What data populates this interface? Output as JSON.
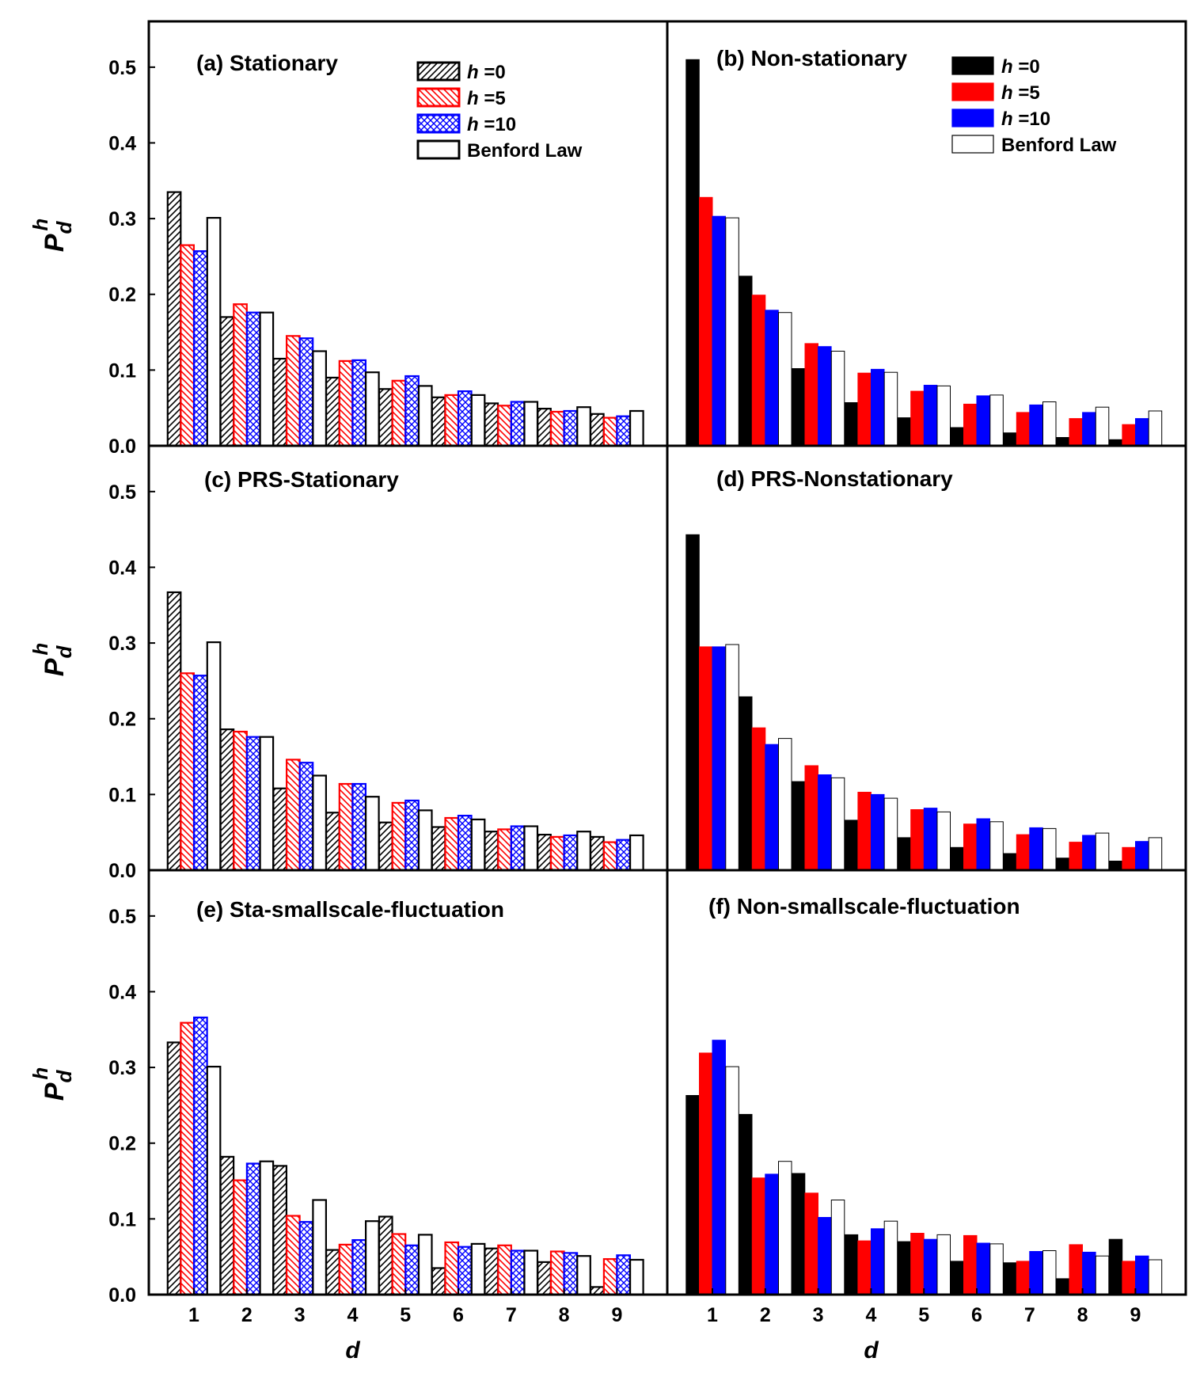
{
  "chart_data": {
    "type": "bar",
    "xlabel": "d",
    "ylabel": {
      "base": "P",
      "subscript": "d",
      "superscript": "h"
    },
    "categories": [
      "1",
      "2",
      "3",
      "4",
      "5",
      "6",
      "7",
      "8",
      "9"
    ],
    "ylim": [
      0,
      0.55
    ],
    "yticks": [
      "0.0",
      "0.1",
      "0.2",
      "0.3",
      "0.4",
      "0.5"
    ],
    "legend": {
      "hatched": [
        {
          "prefix": "h",
          "suffix": " =0",
          "color": "#000000",
          "pattern": "diagonal"
        },
        {
          "prefix": "h",
          "suffix": " =5",
          "color": "#ff0000",
          "pattern": "reverse-diagonal"
        },
        {
          "prefix": "h",
          "suffix": " =10",
          "color": "#0000ff",
          "pattern": "crosshatch"
        },
        {
          "prefix": "",
          "suffix": "Benford Law",
          "color": "#000000",
          "pattern": "none"
        }
      ],
      "solid": [
        {
          "prefix": "h",
          "suffix": " =0",
          "color": "#000000"
        },
        {
          "prefix": "h",
          "suffix": " =5",
          "color": "#ff0000"
        },
        {
          "prefix": "h",
          "suffix": " =10",
          "color": "#0000ff"
        },
        {
          "prefix": "",
          "suffix": "Benford Law",
          "color": "#ffffff"
        }
      ]
    },
    "panels": [
      {
        "title": "(a) Stationary",
        "style": "hatched",
        "legend_position": "top-right",
        "series": [
          {
            "name": "h =0",
            "values": [
              0.335,
              0.17,
              0.115,
              0.09,
              0.075,
              0.064,
              0.056,
              0.049,
              0.042
            ]
          },
          {
            "name": "h =5",
            "values": [
              0.265,
              0.187,
              0.145,
              0.112,
              0.086,
              0.067,
              0.053,
              0.045,
              0.037
            ]
          },
          {
            "name": "h =10",
            "values": [
              0.257,
              0.176,
              0.142,
              0.113,
              0.092,
              0.072,
              0.058,
              0.046,
              0.039
            ]
          },
          {
            "name": "Benford Law",
            "values": [
              0.301,
              0.176,
              0.125,
              0.097,
              0.079,
              0.067,
              0.058,
              0.051,
              0.046
            ]
          }
        ]
      },
      {
        "title": "(b) Non-stationary",
        "style": "solid",
        "legend_position": "top-right",
        "series": [
          {
            "name": "h =0",
            "values": [
              0.51,
              0.224,
              0.102,
              0.057,
              0.037,
              0.024,
              0.017,
              0.011,
              0.008
            ]
          },
          {
            "name": "h =5",
            "values": [
              0.328,
              0.199,
              0.135,
              0.096,
              0.072,
              0.055,
              0.044,
              0.036,
              0.028
            ]
          },
          {
            "name": "h =10",
            "values": [
              0.303,
              0.179,
              0.131,
              0.101,
              0.08,
              0.066,
              0.054,
              0.044,
              0.036
            ]
          },
          {
            "name": "Benford Law",
            "values": [
              0.301,
              0.176,
              0.125,
              0.097,
              0.079,
              0.067,
              0.058,
              0.051,
              0.046
            ]
          }
        ]
      },
      {
        "title": "(c) PRS-Stationary",
        "style": "hatched",
        "series": [
          {
            "name": "h =0",
            "values": [
              0.367,
              0.186,
              0.108,
              0.076,
              0.063,
              0.057,
              0.051,
              0.047,
              0.044
            ]
          },
          {
            "name": "h =5",
            "values": [
              0.26,
              0.183,
              0.146,
              0.114,
              0.089,
              0.069,
              0.054,
              0.044,
              0.037
            ]
          },
          {
            "name": "h =10",
            "values": [
              0.257,
              0.176,
              0.142,
              0.114,
              0.092,
              0.072,
              0.058,
              0.046,
              0.04
            ]
          },
          {
            "name": "Benford Law",
            "values": [
              0.301,
              0.176,
              0.125,
              0.097,
              0.079,
              0.067,
              0.058,
              0.051,
              0.046
            ]
          }
        ]
      },
      {
        "title": "(d) PRS-Nonstationary",
        "style": "solid",
        "series": [
          {
            "name": "h =0",
            "values": [
              0.443,
              0.229,
              0.117,
              0.066,
              0.043,
              0.03,
              0.022,
              0.016,
              0.012
            ]
          },
          {
            "name": "h =5",
            "values": [
              0.295,
              0.188,
              0.138,
              0.103,
              0.08,
              0.061,
              0.047,
              0.037,
              0.03
            ]
          },
          {
            "name": "h =10",
            "values": [
              0.295,
              0.166,
              0.126,
              0.1,
              0.082,
              0.068,
              0.056,
              0.046,
              0.038
            ]
          },
          {
            "name": "Benford Law",
            "values": [
              0.298,
              0.174,
              0.122,
              0.095,
              0.077,
              0.064,
              0.055,
              0.049,
              0.043
            ]
          }
        ]
      },
      {
        "title": "(e) Sta-smallscale-fluctuation",
        "style": "hatched",
        "series": [
          {
            "name": "h =0",
            "values": [
              0.333,
              0.182,
              0.17,
              0.059,
              0.103,
              0.035,
              0.061,
              0.043,
              0.01
            ]
          },
          {
            "name": "h =5",
            "values": [
              0.359,
              0.151,
              0.104,
              0.066,
              0.08,
              0.069,
              0.065,
              0.057,
              0.047
            ]
          },
          {
            "name": "h =10",
            "values": [
              0.366,
              0.173,
              0.096,
              0.072,
              0.065,
              0.063,
              0.058,
              0.055,
              0.052
            ]
          },
          {
            "name": "Benford Law",
            "values": [
              0.301,
              0.176,
              0.125,
              0.097,
              0.079,
              0.067,
              0.058,
              0.051,
              0.046
            ]
          }
        ]
      },
      {
        "title": "(f) Non-smallscale-fluctuation",
        "style": "solid",
        "series": [
          {
            "name": "h =0",
            "values": [
              0.263,
              0.238,
              0.16,
              0.079,
              0.07,
              0.044,
              0.042,
              0.021,
              0.073
            ]
          },
          {
            "name": "h =5",
            "values": [
              0.319,
              0.154,
              0.134,
              0.071,
              0.081,
              0.078,
              0.044,
              0.066,
              0.044
            ]
          },
          {
            "name": "h =10",
            "values": [
              0.336,
              0.159,
              0.102,
              0.087,
              0.073,
              0.068,
              0.057,
              0.056,
              0.051
            ]
          },
          {
            "name": "Benford Law",
            "values": [
              0.301,
              0.176,
              0.125,
              0.097,
              0.079,
              0.067,
              0.058,
              0.051,
              0.046
            ]
          }
        ]
      }
    ]
  }
}
